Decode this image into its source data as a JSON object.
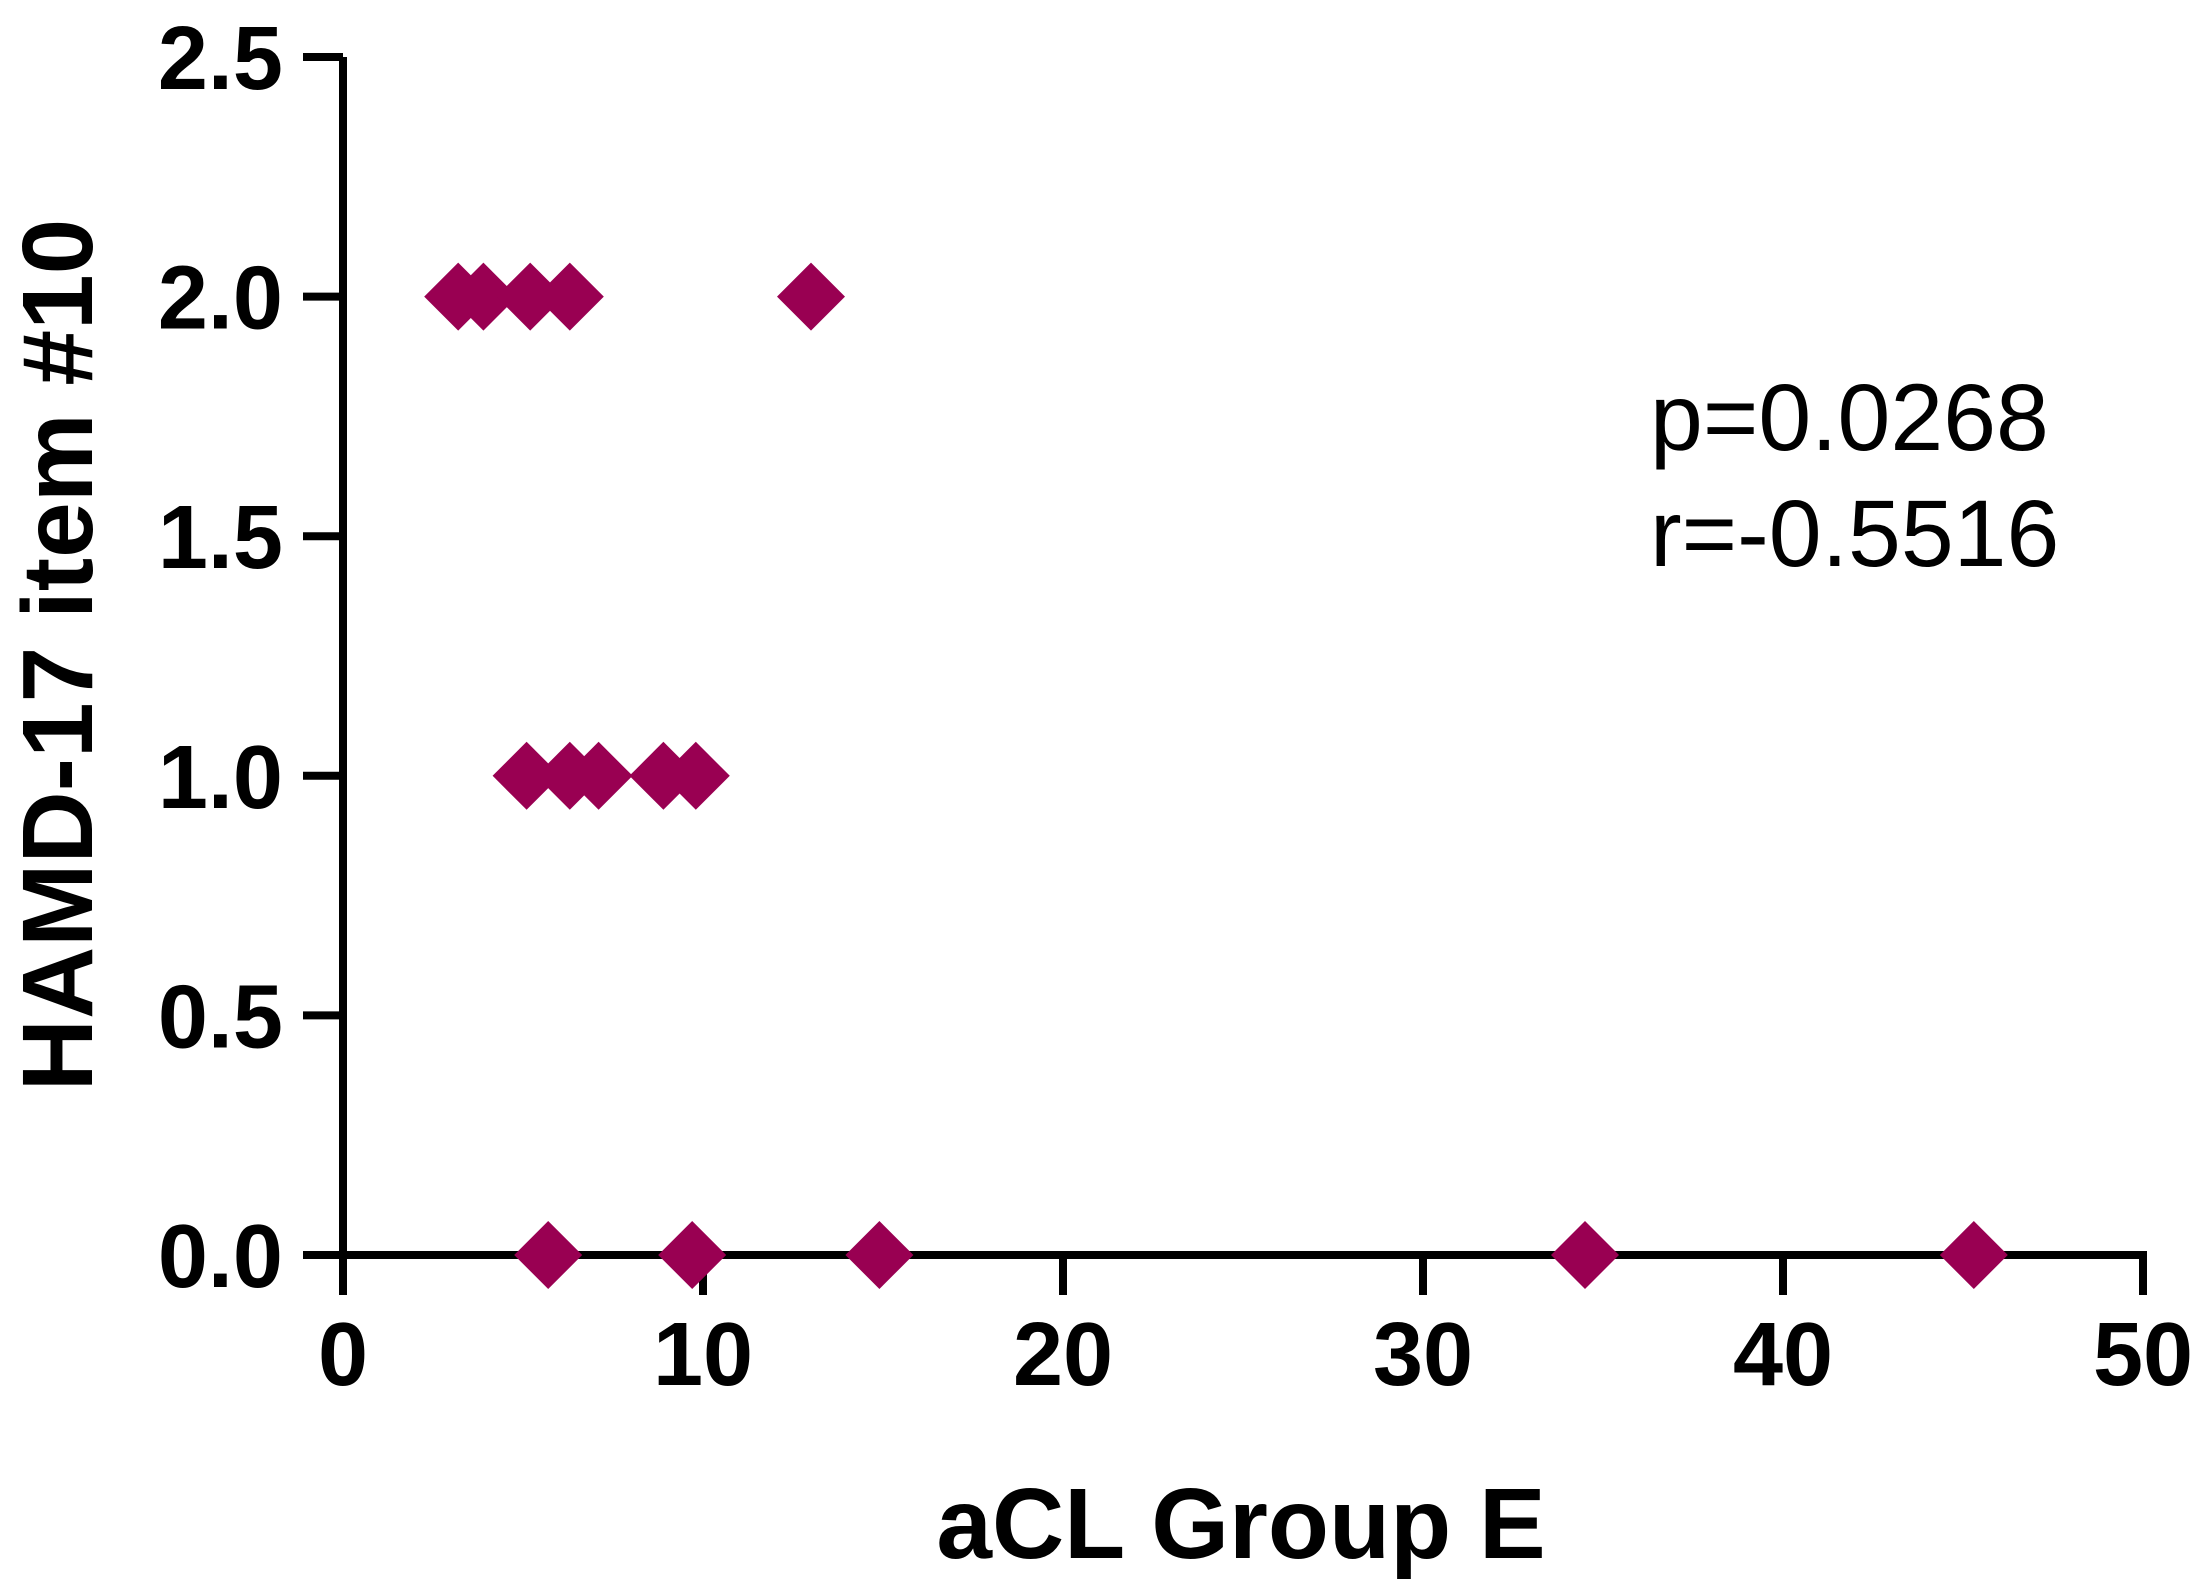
{
  "chart_data": {
    "type": "scatter",
    "xlabel": "aCL Group E",
    "ylabel": "HAMD-17 item #10",
    "xlim": [
      0,
      50
    ],
    "ylim": [
      0,
      2.5
    ],
    "x_ticks": [
      0,
      10,
      20,
      30,
      40,
      50
    ],
    "x_tick_labels": [
      "0",
      "10",
      "20",
      "30",
      "40",
      "50"
    ],
    "y_ticks": [
      0,
      0.5,
      1.0,
      1.5,
      2.0,
      2.5
    ],
    "y_tick_labels": [
      "0.0",
      "0.5",
      "1.0",
      "1.5",
      "2.0",
      "2.5"
    ],
    "grid": false,
    "marker": "diamond",
    "marker_color": "#990052",
    "series": [
      {
        "points": [
          {
            "x": 3.2,
            "y": 2.0
          },
          {
            "x": 3.9,
            "y": 2.0
          },
          {
            "x": 5.2,
            "y": 2.0
          },
          {
            "x": 6.3,
            "y": 2.0
          },
          {
            "x": 13.0,
            "y": 2.0
          },
          {
            "x": 5.1,
            "y": 1.0
          },
          {
            "x": 6.3,
            "y": 1.0
          },
          {
            "x": 7.1,
            "y": 1.0
          },
          {
            "x": 8.9,
            "y": 1.0
          },
          {
            "x": 9.8,
            "y": 1.0
          },
          {
            "x": 5.7,
            "y": 0.0
          },
          {
            "x": 9.7,
            "y": 0.0
          },
          {
            "x": 14.9,
            "y": 0.0
          },
          {
            "x": 34.5,
            "y": 0.0
          },
          {
            "x": 45.3,
            "y": 0.0
          }
        ]
      }
    ],
    "annotations": [
      "p=0.0268",
      "r=-0.5516"
    ]
  }
}
